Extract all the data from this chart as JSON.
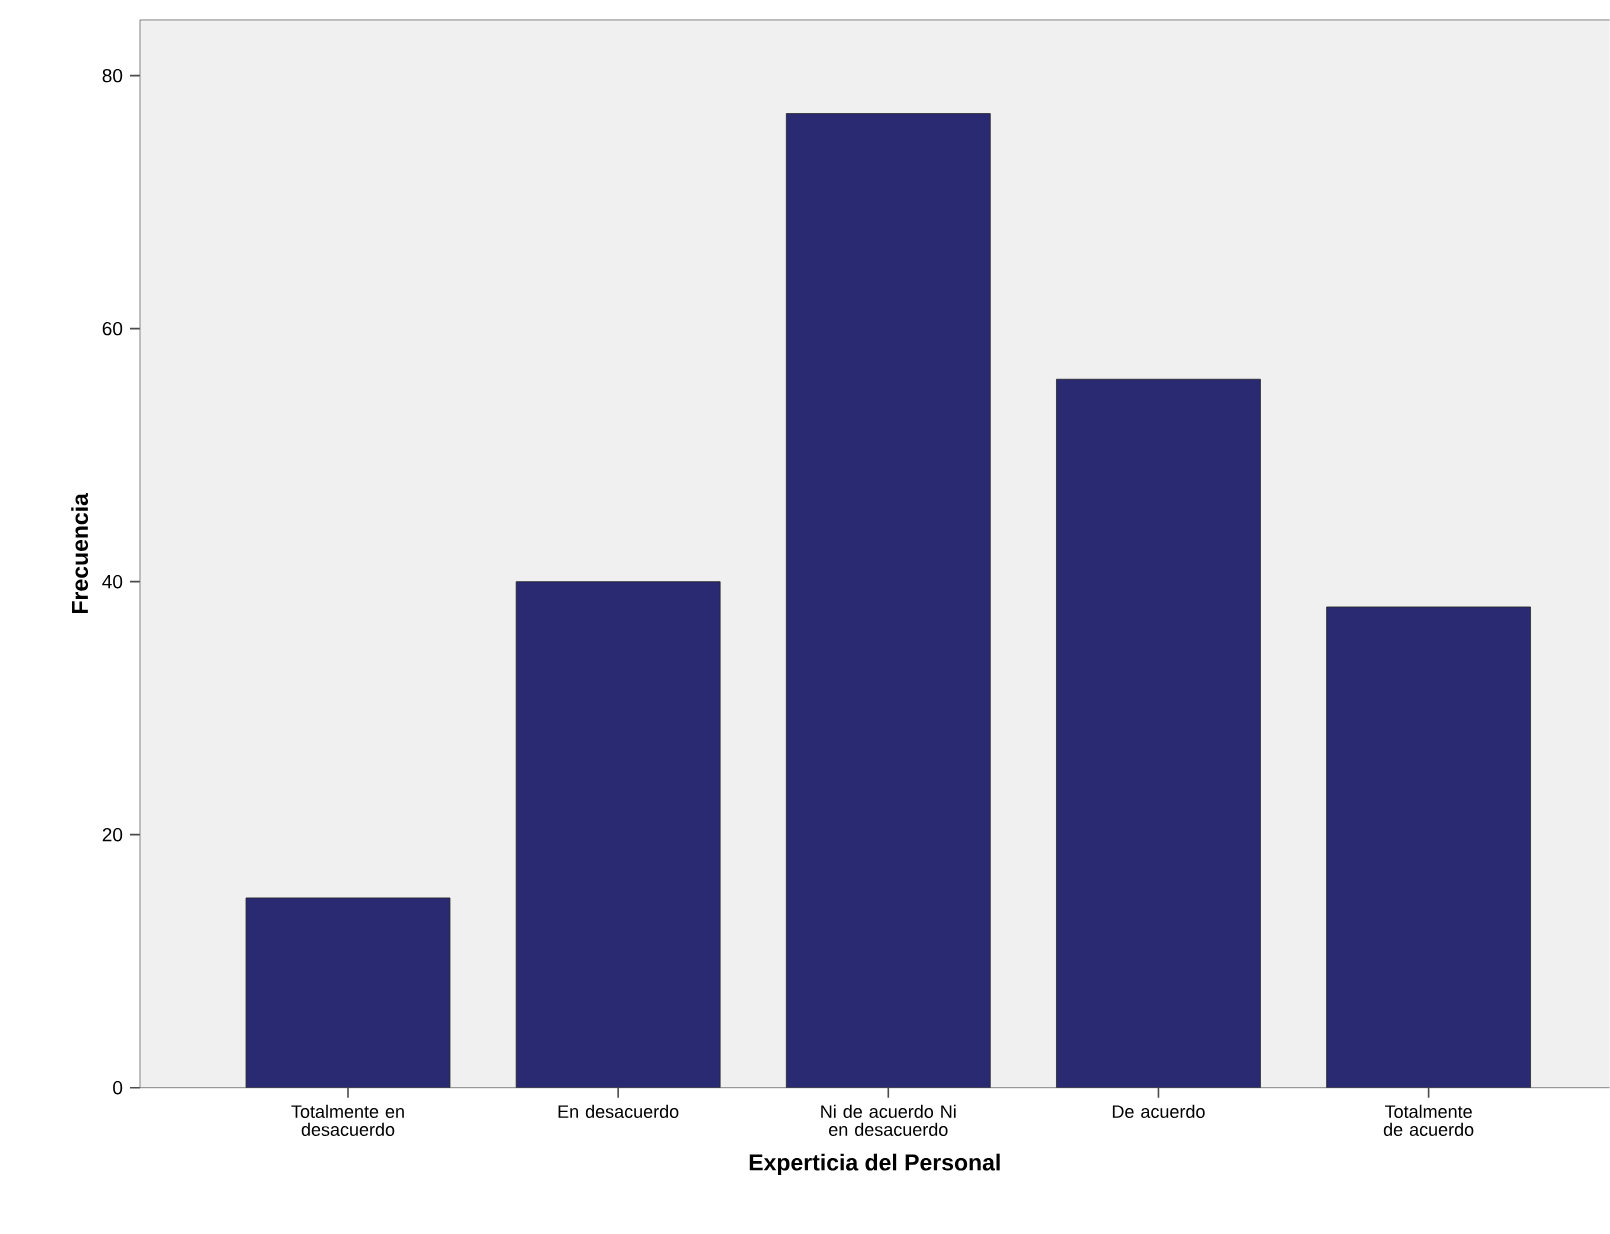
{
  "chart_data": {
    "type": "bar",
    "xlabel": "Experticia del Personal",
    "ylabel": "Frecuencia",
    "categories": [
      "Totalmente en desacuerdo",
      "En desacuerdo",
      "Ni de acuerdo Ni en desacuerdo",
      "De acuerdo",
      "Totalmente de acuerdo"
    ],
    "values": [
      15,
      40,
      77,
      56,
      38
    ],
    "color": "#292a72",
    "ylim": [
      0,
      84.4
    ],
    "yticks": [
      0,
      20,
      40,
      60,
      80
    ],
    "grid": false
  }
}
